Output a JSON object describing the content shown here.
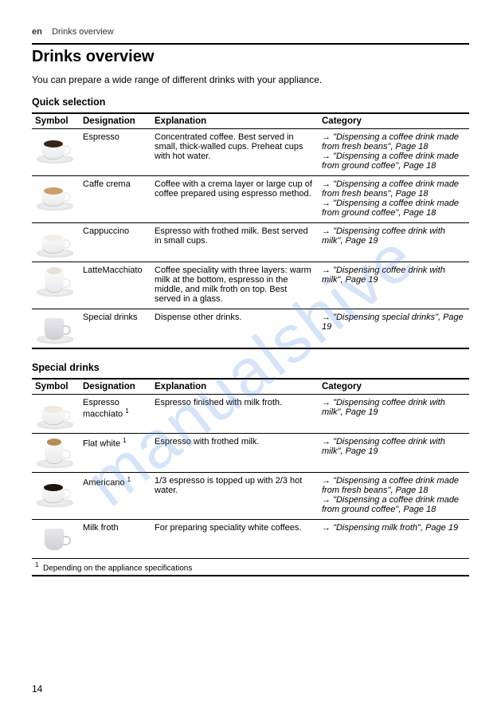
{
  "header": {
    "lang": "en",
    "section": "Drinks overview"
  },
  "title": "Drinks overview",
  "intro": "You can prepare a wide range of different drinks with your appliance.",
  "watermark": "manualshive",
  "page_number": "14",
  "table_headers": {
    "symbol": "Symbol",
    "designation": "Designation",
    "explanation": "Explanation",
    "category": "Category"
  },
  "quick": {
    "label": "Quick selection",
    "rows": [
      {
        "icon": {
          "type": "cup",
          "liquid_color": "#3a2615",
          "saucer": true
        },
        "designation": "Espresso",
        "explanation": "Concentrated coffee. Best served in small, thick-walled cups. Preheat cups with hot water.",
        "categories": [
          "\"Dispensing a coffee drink made from fresh beans\", Page 18",
          "\"Dispensing a coffee drink made from ground coffee\", Page 18"
        ]
      },
      {
        "icon": {
          "type": "cup",
          "liquid_color": "#caa06a",
          "saucer": true
        },
        "designation": "Caffe crema",
        "explanation": "Coffee with a crema layer or large cup of coffee prepared using espresso method.",
        "categories": [
          "\"Dispensing a coffee drink made from fresh beans\", Page 18",
          "\"Dispensing a coffee drink made from ground coffee\", Page 18"
        ]
      },
      {
        "icon": {
          "type": "cup",
          "liquid_color": "#f3efe8",
          "saucer": true
        },
        "designation": "Cappuccino",
        "explanation": "Espresso with frothed milk. Best served in small cups.",
        "categories": [
          "\"Dispensing coffee drink with milk\", Page 19"
        ]
      },
      {
        "icon": {
          "type": "tall",
          "liquid_color": "#e9e1d4",
          "saucer": true
        },
        "designation": "LatteMacchiato",
        "explanation": "Coffee speciality with three layers: warm milk at the bottom, espresso in the middle, and milk froth on top. Best served in a glass.",
        "categories": [
          "\"Dispensing coffee drink with milk\", Page 19"
        ]
      },
      {
        "icon": {
          "type": "pitcher",
          "liquid_color": "#dcdce2",
          "saucer": true
        },
        "designation": "Special drinks",
        "explanation": "Dispense other drinks.",
        "categories": [
          "\"Dispensing special drinks\", Page 19"
        ]
      }
    ]
  },
  "special": {
    "label": "Special drinks",
    "rows": [
      {
        "icon": {
          "type": "cup",
          "liquid_color": "#f0e9df",
          "saucer": true
        },
        "designation": "Espresso macchiato",
        "designation_footnote": "1",
        "explanation": "Espresso finished with milk froth.",
        "categories": [
          "\"Dispensing coffee drink with milk\", Page 19"
        ]
      },
      {
        "icon": {
          "type": "tall",
          "liquid_color": "#b78b55",
          "saucer": true
        },
        "designation": "Flat white",
        "designation_footnote": "1",
        "explanation": "Espresso with frothed milk.",
        "categories": [
          "\"Dispensing coffee drink with milk\", Page 19"
        ]
      },
      {
        "icon": {
          "type": "cup",
          "liquid_color": "#1c1410",
          "saucer": true
        },
        "designation": "Americano",
        "designation_footnote": "1",
        "explanation": "1/3 espresso is topped up with 2/3 hot water.",
        "categories": [
          "\"Dispensing a coffee drink made from fresh beans\", Page 18",
          "\"Dispensing a coffee drink made from ground coffee\", Page 18"
        ]
      },
      {
        "icon": {
          "type": "pitcher",
          "liquid_color": "#dcdce2",
          "saucer": false
        },
        "designation": "Milk froth",
        "explanation": "For preparing speciality white coffees.",
        "categories": [
          "\"Dispensing milk froth\", Page 19"
        ]
      }
    ],
    "footnote": {
      "mark": "1",
      "text": "Depending on the appliance specifications"
    }
  }
}
